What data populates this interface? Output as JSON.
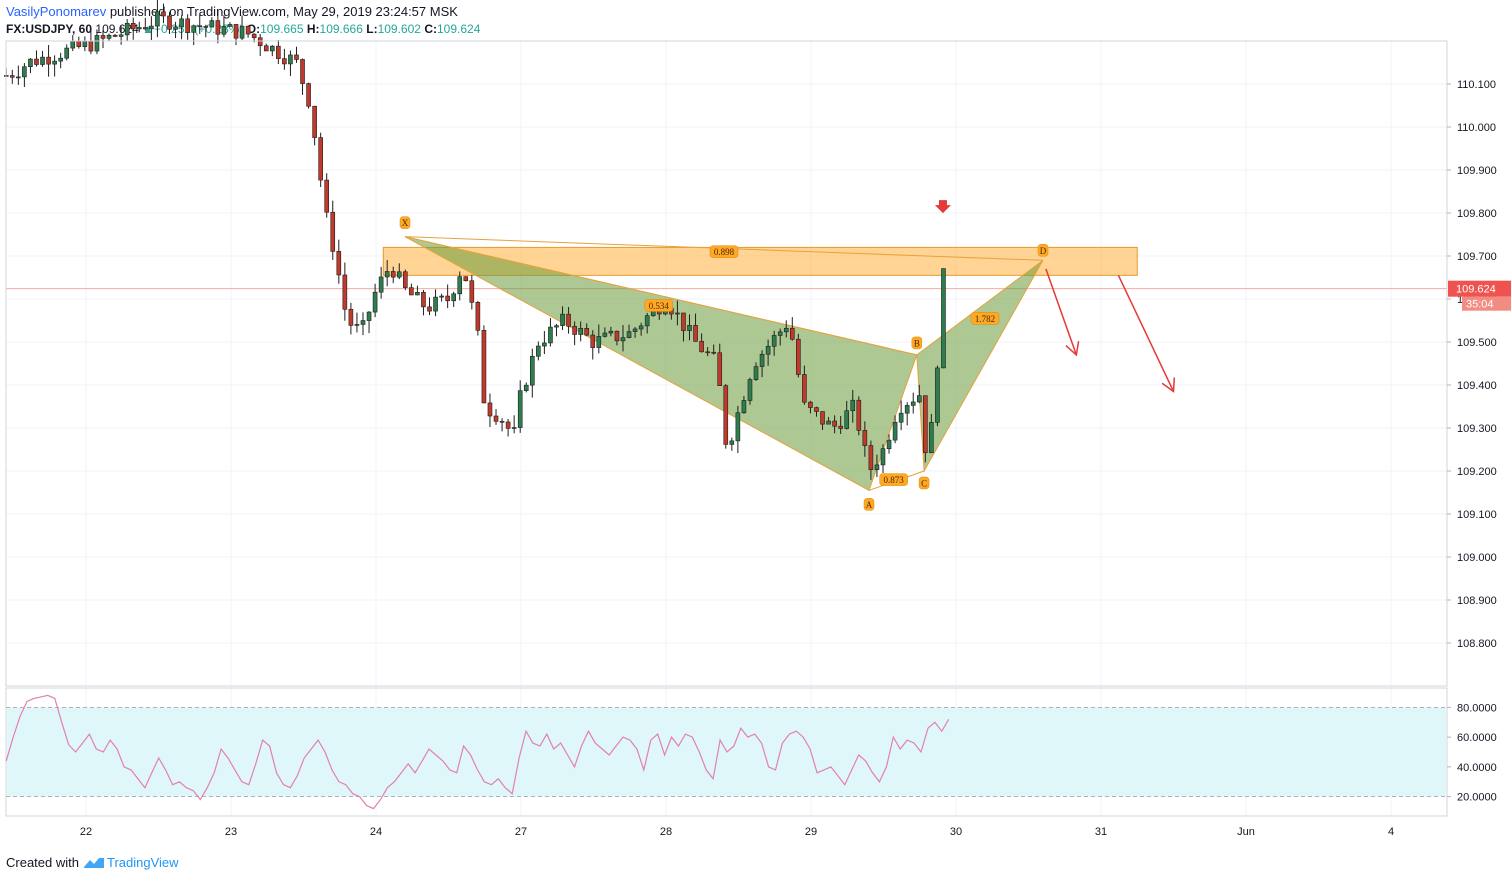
{
  "header": {
    "author": "VasilyPonomarev",
    "published_text": "published on TradingView.com, May 29, 2019 23:24:57 MSK",
    "symbol": "FX:USDJPY, 60",
    "last": "109.624",
    "change": "+0.252 (+0.23%)",
    "open_label": "O:",
    "open": "109.665",
    "high_label": "H:",
    "high": "109.666",
    "low_label": "L:",
    "low": "109.602",
    "close_label": "C:",
    "close": "109.624"
  },
  "footer": {
    "created_with": "Created with",
    "brand": "TradingView"
  },
  "colors": {
    "up": "#2e7d4f",
    "down": "#c0392b",
    "zone": "#ffb74d",
    "pattern": "#6a9a3a",
    "arrow": "#e53935",
    "rsi_line": "#e27fb4",
    "rsi_band": "#e0f7fa",
    "price_tag": "#ef5350"
  },
  "chart_data": [
    {
      "type": "candlestick",
      "symbol": "FX:USDJPY",
      "interval": "60",
      "y_axis": {
        "min": 108.7,
        "max": 110.2,
        "ticks": [
          "110.100",
          "110.000",
          "109.900",
          "109.800",
          "109.700",
          "109.600",
          "109.500",
          "109.400",
          "109.300",
          "109.200",
          "109.100",
          "109.000",
          "108.900",
          "108.800"
        ]
      },
      "x_axis": {
        "start_day": 21.45,
        "end_day": 35.4,
        "ticks": [
          {
            "label": "22",
            "day": 22
          },
          {
            "label": "23",
            "day": 23
          },
          {
            "label": "24",
            "day": 24
          },
          {
            "label": "27",
            "day": 25
          },
          {
            "label": "28",
            "day": 26
          },
          {
            "label": "29",
            "day": 27
          },
          {
            "label": "30",
            "day": 28
          },
          {
            "label": "31",
            "day": 29
          },
          {
            "label": "Jun",
            "day": 30
          },
          {
            "label": "4",
            "day": 31
          }
        ]
      },
      "price_tag": {
        "value": 109.624,
        "label": "109.624",
        "countdown": "35:04"
      },
      "waypoints": [
        {
          "day": 21.45,
          "price": 110.12
        },
        {
          "day": 21.52,
          "price": 110.13
        },
        {
          "day": 21.6,
          "price": 110.15
        },
        {
          "day": 22.1,
          "price": 110.2
        },
        {
          "day": 22.5,
          "price": 110.25
        },
        {
          "day": 23.1,
          "price": 110.22
        },
        {
          "day": 23.45,
          "price": 110.15
        },
        {
          "day": 23.55,
          "price": 110.05
        },
        {
          "day": 23.65,
          "price": 109.8
        },
        {
          "day": 23.72,
          "price": 109.7
        },
        {
          "day": 23.8,
          "price": 109.55
        },
        {
          "day": 23.9,
          "price": 109.52
        },
        {
          "day": 24.0,
          "price": 109.62
        },
        {
          "day": 24.1,
          "price": 109.68
        },
        {
          "day": 24.2,
          "price": 109.62
        },
        {
          "day": 24.35,
          "price": 109.58
        },
        {
          "day": 24.5,
          "price": 109.6
        },
        {
          "day": 24.6,
          "price": 109.68
        },
        {
          "day": 24.7,
          "price": 109.52
        },
        {
          "day": 24.75,
          "price": 109.35
        },
        {
          "day": 24.85,
          "price": 109.33
        },
        {
          "day": 24.95,
          "price": 109.28
        },
        {
          "day": 25.0,
          "price": 109.38
        },
        {
          "day": 25.12,
          "price": 109.5
        },
        {
          "day": 25.3,
          "price": 109.55
        },
        {
          "day": 25.5,
          "price": 109.5
        },
        {
          "day": 25.75,
          "price": 109.52
        },
        {
          "day": 26.0,
          "price": 109.6
        },
        {
          "day": 26.2,
          "price": 109.5
        },
        {
          "day": 26.35,
          "price": 109.45
        },
        {
          "day": 26.42,
          "price": 109.25
        },
        {
          "day": 26.6,
          "price": 109.45
        },
        {
          "day": 26.85,
          "price": 109.55
        },
        {
          "day": 26.95,
          "price": 109.35
        },
        {
          "day": 27.15,
          "price": 109.3
        },
        {
          "day": 27.3,
          "price": 109.35
        },
        {
          "day": 27.4,
          "price": 109.2
        },
        {
          "day": 27.5,
          "price": 109.25
        },
        {
          "day": 27.6,
          "price": 109.35
        },
        {
          "day": 27.75,
          "price": 109.38
        },
        {
          "day": 27.8,
          "price": 109.22
        },
        {
          "day": 27.85,
          "price": 109.35
        },
        {
          "day": 27.88,
          "price": 109.5
        },
        {
          "day": 27.92,
          "price": 109.68
        },
        {
          "day": 27.95,
          "price": 109.62
        }
      ],
      "rsi": {
        "axis_ticks": [
          "80.0000",
          "60.0000",
          "40.0000",
          "20.0000"
        ],
        "band": [
          20,
          80
        ],
        "values": [
          44,
          60,
          74,
          84,
          86,
          87,
          88,
          86,
          70,
          55,
          50,
          56,
          62,
          52,
          50,
          58,
          52,
          40,
          38,
          32,
          26,
          36,
          46,
          38,
          28,
          30,
          26,
          24,
          18,
          26,
          36,
          52,
          46,
          38,
          30,
          28,
          42,
          58,
          54,
          36,
          28,
          26,
          34,
          46,
          52,
          58,
          50,
          38,
          30,
          28,
          22,
          20,
          14,
          12,
          18,
          26,
          30,
          36,
          42,
          36,
          44,
          52,
          48,
          44,
          38,
          36,
          54,
          48,
          38,
          30,
          28,
          32,
          26,
          22,
          46,
          64,
          56,
          54,
          62,
          52,
          56,
          48,
          40,
          54,
          64,
          56,
          52,
          48,
          54,
          60,
          58,
          52,
          38,
          58,
          62,
          48,
          60,
          54,
          62,
          60,
          50,
          38,
          32,
          58,
          50,
          54,
          66,
          60,
          62,
          56,
          40,
          38,
          56,
          62,
          64,
          60,
          52,
          36,
          38,
          40,
          34,
          28,
          38,
          48,
          44,
          36,
          30,
          40,
          60,
          52,
          58,
          56,
          50,
          66,
          70,
          64,
          72
        ]
      }
    }
  ],
  "pattern": {
    "points": [
      {
        "label": "X"
      },
      {
        "label": "A"
      },
      {
        "label": "B"
      },
      {
        "label": "C"
      },
      {
        "label": "D"
      }
    ],
    "ratios": [
      "0.898",
      "0.534",
      "1.782",
      "0.873"
    ]
  }
}
